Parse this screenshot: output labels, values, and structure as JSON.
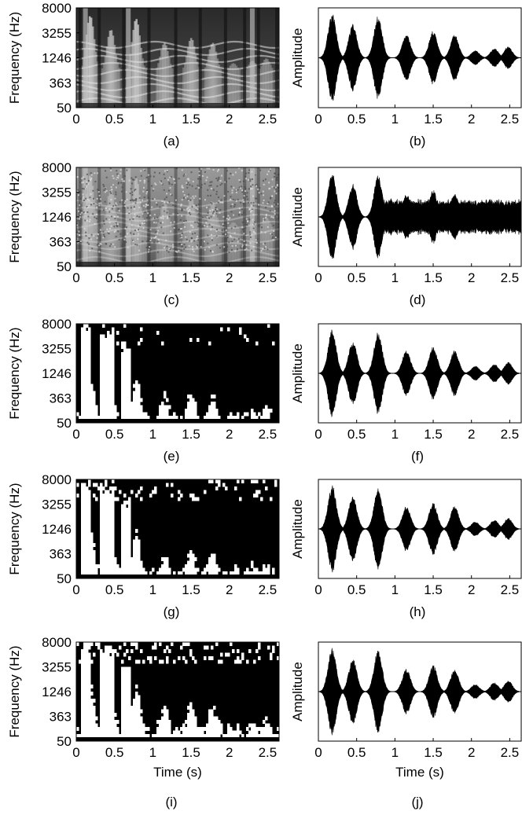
{
  "figure": {
    "panels": [
      {
        "id": "a",
        "label": "(a)",
        "kind": "spectrogram",
        "style": "gray",
        "ylabel": "Frequency (Hz)",
        "xlabel": ""
      },
      {
        "id": "b",
        "label": "(b)",
        "kind": "waveform",
        "noise": false,
        "ylabel": "Amplitude",
        "xlabel": ""
      },
      {
        "id": "c",
        "label": "(c)",
        "kind": "spectrogram",
        "style": "gray-noisy",
        "ylabel": "Frequency (Hz)",
        "xlabel": ""
      },
      {
        "id": "d",
        "label": "(d)",
        "kind": "waveform",
        "noise": true,
        "ylabel": "Amplitude",
        "xlabel": ""
      },
      {
        "id": "e",
        "label": "(e)",
        "kind": "mask",
        "ylabel": "Frequency (Hz)",
        "xlabel": ""
      },
      {
        "id": "f",
        "label": "(f)",
        "kind": "waveform",
        "noise": false,
        "ylabel": "Amplitude",
        "xlabel": ""
      },
      {
        "id": "g",
        "label": "(g)",
        "kind": "mask",
        "ylabel": "Frequency (Hz)",
        "xlabel": ""
      },
      {
        "id": "h",
        "label": "(h)",
        "kind": "waveform",
        "noise": false,
        "ylabel": "Amplitude",
        "xlabel": ""
      },
      {
        "id": "i",
        "label": "(i)",
        "kind": "mask",
        "ylabel": "Frequency (Hz)",
        "xlabel": "Time (s)"
      },
      {
        "id": "j",
        "label": "(j)",
        "kind": "waveform",
        "noise": false,
        "ylabel": "Amplitude",
        "xlabel": "Time (s)"
      }
    ],
    "colors": {
      "ink": "#000000",
      "paper": "#ffffff"
    }
  },
  "chart_data": {
    "type": "waveform-and-spectrogram-grid",
    "x_ticks": [
      0,
      0.5,
      1,
      1.5,
      2,
      2.5
    ],
    "x_tick_labels": [
      "0",
      "0.5",
      "1",
      "1.5",
      "2",
      "2.5"
    ],
    "xlim": [
      0,
      2.65
    ],
    "spectrogram_y_ticks": [
      50,
      363,
      1246,
      3255,
      8000
    ],
    "spectrogram_y_tick_labels": [
      "50",
      "363",
      "1246",
      "3255",
      "8000"
    ],
    "speech_bursts": [
      {
        "t": 0.18,
        "a": 0.95
      },
      {
        "t": 0.45,
        "a": 0.72
      },
      {
        "t": 0.78,
        "a": 0.9
      },
      {
        "t": 1.15,
        "a": 0.5
      },
      {
        "t": 1.5,
        "a": 0.58
      },
      {
        "t": 1.78,
        "a": 0.5
      },
      {
        "t": 2.05,
        "a": 0.16
      },
      {
        "t": 2.3,
        "a": 0.2
      },
      {
        "t": 2.48,
        "a": 0.24
      }
    ]
  }
}
